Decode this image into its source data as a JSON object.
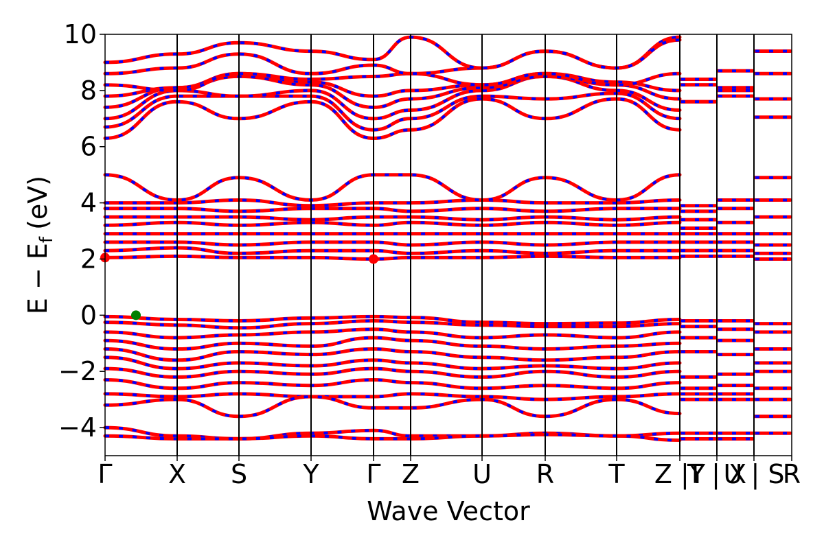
{
  "chart_data": {
    "type": "line",
    "xlabel": "Wave Vector",
    "ylabel_parts": {
      "main": "E − E",
      "sub": "f",
      "unit": "(eV)"
    },
    "ylim": [
      -5,
      10
    ],
    "yticks": [
      -4,
      -2,
      0,
      2,
      4,
      6,
      8,
      10
    ],
    "ytick_labels": [
      "−4",
      "−2",
      "0",
      "2",
      "4",
      "6",
      "8",
      "10"
    ],
    "kpoint_labels": [
      "Γ",
      "X",
      "S",
      "Y",
      "Γ",
      "Z",
      "U",
      "R",
      "T",
      "Z |Y",
      "T | X",
      "U | S",
      "R"
    ],
    "kpoint_positions": [
      0,
      0.105,
      0.195,
      0.3,
      0.391,
      0.445,
      0.549,
      0.641,
      0.745,
      0.837,
      0.891,
      0.945,
      1.0
    ],
    "series": [
      {
        "color": "#ff0000"
      },
      {
        "color": "#0000ff"
      }
    ],
    "segments": [
      {
        "k": [
          0,
          0.105,
          0.195,
          0.3,
          0.391,
          0.445,
          0.549,
          0.641,
          0.745,
          0.837
        ]
      },
      {
        "k": [
          0.837,
          0.891
        ]
      },
      {
        "k": [
          0.891,
          0.945
        ]
      },
      {
        "k": [
          0.945,
          1.0
        ]
      }
    ],
    "valence_bands": [
      [
        -0.05,
        -0.15,
        -0.2,
        -0.1,
        -0.05,
        -0.08,
        -0.25,
        -0.3,
        -0.28,
        -0.15
      ],
      [
        -0.25,
        -0.35,
        -0.45,
        -0.3,
        -0.2,
        -0.25,
        -0.35,
        -0.4,
        -0.4,
        -0.3
      ],
      [
        -0.6,
        -0.8,
        -0.7,
        -0.6,
        -0.5,
        -0.6,
        -0.8,
        -0.7,
        -0.8,
        -0.6
      ],
      [
        -0.9,
        -1.2,
        -1.0,
        -1.1,
        -0.8,
        -0.9,
        -1.1,
        -1.2,
        -1.1,
        -1.0
      ],
      [
        -1.2,
        -1.6,
        -1.3,
        -1.4,
        -1.2,
        -1.3,
        -1.5,
        -1.6,
        -1.5,
        -1.3
      ],
      [
        -1.5,
        -1.9,
        -1.7,
        -1.8,
        -1.6,
        -1.7,
        -1.9,
        -1.8,
        -1.9,
        -1.7
      ],
      [
        -1.9,
        -2.2,
        -2.0,
        -2.1,
        -1.9,
        -2.0,
        -2.2,
        -2.0,
        -2.2,
        -2.0
      ],
      [
        -2.3,
        -2.6,
        -2.4,
        -2.5,
        -2.3,
        -2.4,
        -2.6,
        -2.5,
        -2.6,
        -2.4
      ],
      [
        -2.8,
        -2.9,
        -2.8,
        -2.9,
        -2.9,
        -2.8,
        -2.9,
        -3.0,
        -2.9,
        -2.8
      ],
      [
        -3.2,
        -3.0,
        -3.6,
        -2.9,
        -3.3,
        -3.3,
        -3.0,
        -3.6,
        -3.0,
        -3.5
      ],
      [
        -4.0,
        -4.3,
        -4.4,
        -4.2,
        -4.1,
        -4.3,
        -4.3,
        -4.2,
        -4.3,
        -4.2
      ],
      [
        -4.3,
        -4.4,
        -4.4,
        -4.3,
        -4.4,
        -4.4,
        -4.3,
        -4.25,
        -4.3,
        -4.45
      ]
    ],
    "conduction_bands": [
      [
        2.05,
        2.1,
        2.05,
        2.05,
        2.0,
        2.05,
        2.05,
        2.1,
        2.05,
        2.05
      ],
      [
        2.3,
        2.4,
        2.2,
        2.3,
        2.3,
        2.2,
        2.3,
        2.2,
        2.3,
        2.3
      ],
      [
        2.6,
        2.6,
        2.5,
        2.6,
        2.6,
        2.5,
        2.6,
        2.5,
        2.6,
        2.6
      ],
      [
        2.9,
        2.9,
        2.9,
        2.9,
        2.9,
        2.9,
        2.9,
        2.9,
        2.9,
        2.9
      ],
      [
        3.2,
        3.3,
        3.2,
        3.3,
        3.2,
        3.3,
        3.2,
        3.3,
        3.2,
        3.3
      ],
      [
        3.5,
        3.5,
        3.5,
        3.4,
        3.5,
        3.5,
        3.4,
        3.5,
        3.4,
        3.5
      ],
      [
        3.8,
        3.8,
        3.7,
        3.8,
        3.8,
        3.7,
        3.8,
        3.7,
        3.8,
        3.8
      ],
      [
        4.0,
        4.0,
        4.1,
        3.9,
        4.0,
        4.0,
        4.1,
        4.0,
        4.0,
        4.1
      ],
      [
        5.0,
        4.1,
        4.9,
        4.1,
        5.0,
        5.0,
        4.1,
        4.9,
        4.1,
        5.0
      ],
      [
        6.3,
        7.6,
        7.0,
        7.6,
        6.3,
        6.6,
        7.7,
        7.0,
        7.7,
        6.6
      ],
      [
        6.7,
        7.8,
        7.8,
        7.8,
        6.6,
        7.0,
        7.8,
        7.7,
        7.9,
        7.0
      ],
      [
        7.0,
        8.0,
        7.8,
        8.0,
        7.0,
        7.3,
        8.0,
        8.5,
        8.0,
        7.3
      ],
      [
        7.4,
        8.1,
        8.5,
        8.2,
        7.4,
        7.7,
        8.1,
        8.5,
        8.2,
        7.7
      ],
      [
        7.8,
        8.1,
        8.6,
        8.3,
        7.8,
        8.0,
        8.2,
        8.6,
        8.3,
        8.0
      ],
      [
        8.2,
        8.0,
        8.6,
        8.4,
        8.5,
        8.6,
        8.2,
        8.6,
        8.2,
        8.6
      ],
      [
        8.6,
        8.8,
        9.3,
        8.6,
        8.9,
        8.6,
        8.8,
        9.4,
        8.8,
        9.9
      ],
      [
        9.0,
        9.3,
        9.7,
        9.4,
        9.1,
        9.9,
        8.8,
        9.4,
        8.8,
        9.8
      ]
    ],
    "short_segments": [
      {
        "k0": 0.837,
        "k1": 0.891,
        "values": [
          8.4,
          8.2,
          7.6,
          7.6,
          3.9,
          3.7,
          3.4,
          3.1,
          2.9,
          2.6,
          2.3,
          2.1,
          -0.2,
          -0.4,
          -0.8,
          -1.3,
          -2.2,
          -2.6,
          -2.8,
          -3.0,
          -4.2,
          -4.4
        ]
      },
      {
        "k0": 0.891,
        "k1": 0.945,
        "values": [
          8.7,
          8.1,
          8.0,
          7.8,
          4.1,
          3.8,
          3.3,
          2.9,
          2.6,
          2.3,
          2.1,
          -0.2,
          -0.5,
          -0.9,
          -1.4,
          -2.1,
          -2.5,
          -2.8,
          -3.0,
          -4.2,
          -4.4
        ]
      },
      {
        "k0": 0.945,
        "k1": 1.0,
        "values": [
          9.4,
          8.6,
          7.7,
          7.05,
          4.9,
          4.1,
          3.5,
          2.9,
          2.5,
          2.2,
          2.0,
          -0.3,
          -0.6,
          -1.2,
          -1.7,
          -2.0,
          -2.6,
          -3.0,
          -3.6,
          -4.2
        ]
      }
    ],
    "markers": [
      {
        "k": 0,
        "e": 2.05,
        "color": "#ff0000"
      },
      {
        "k": 0.391,
        "e": 2.0,
        "color": "#ff0000"
      },
      {
        "k": 0.045,
        "e": 0.0,
        "color": "#008000"
      }
    ]
  }
}
